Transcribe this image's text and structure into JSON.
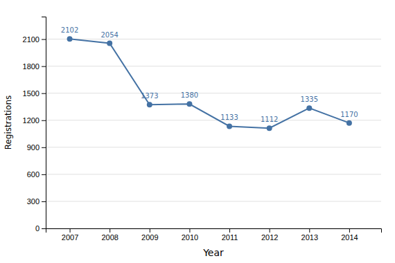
{
  "chart_data": {
    "type": "line",
    "x": [
      2007,
      2008,
      2009,
      2010,
      2011,
      2012,
      2013,
      2014
    ],
    "values": [
      2102,
      2054,
      1373,
      1380,
      1133,
      1112,
      1335,
      1170
    ],
    "xlabel": "Year",
    "ylabel": "Registrations",
    "xlim": [
      2006.4,
      2014.8
    ],
    "xticks": [
      2007,
      2008,
      2009,
      2010,
      2011,
      2012,
      2013,
      2014
    ],
    "ylim": [
      0,
      2350
    ],
    "yticks": [
      0,
      300,
      600,
      900,
      1200,
      1500,
      1800,
      2100
    ],
    "grid": true,
    "color": "#4472A4",
    "marker": "circle",
    "data_labels": true
  }
}
